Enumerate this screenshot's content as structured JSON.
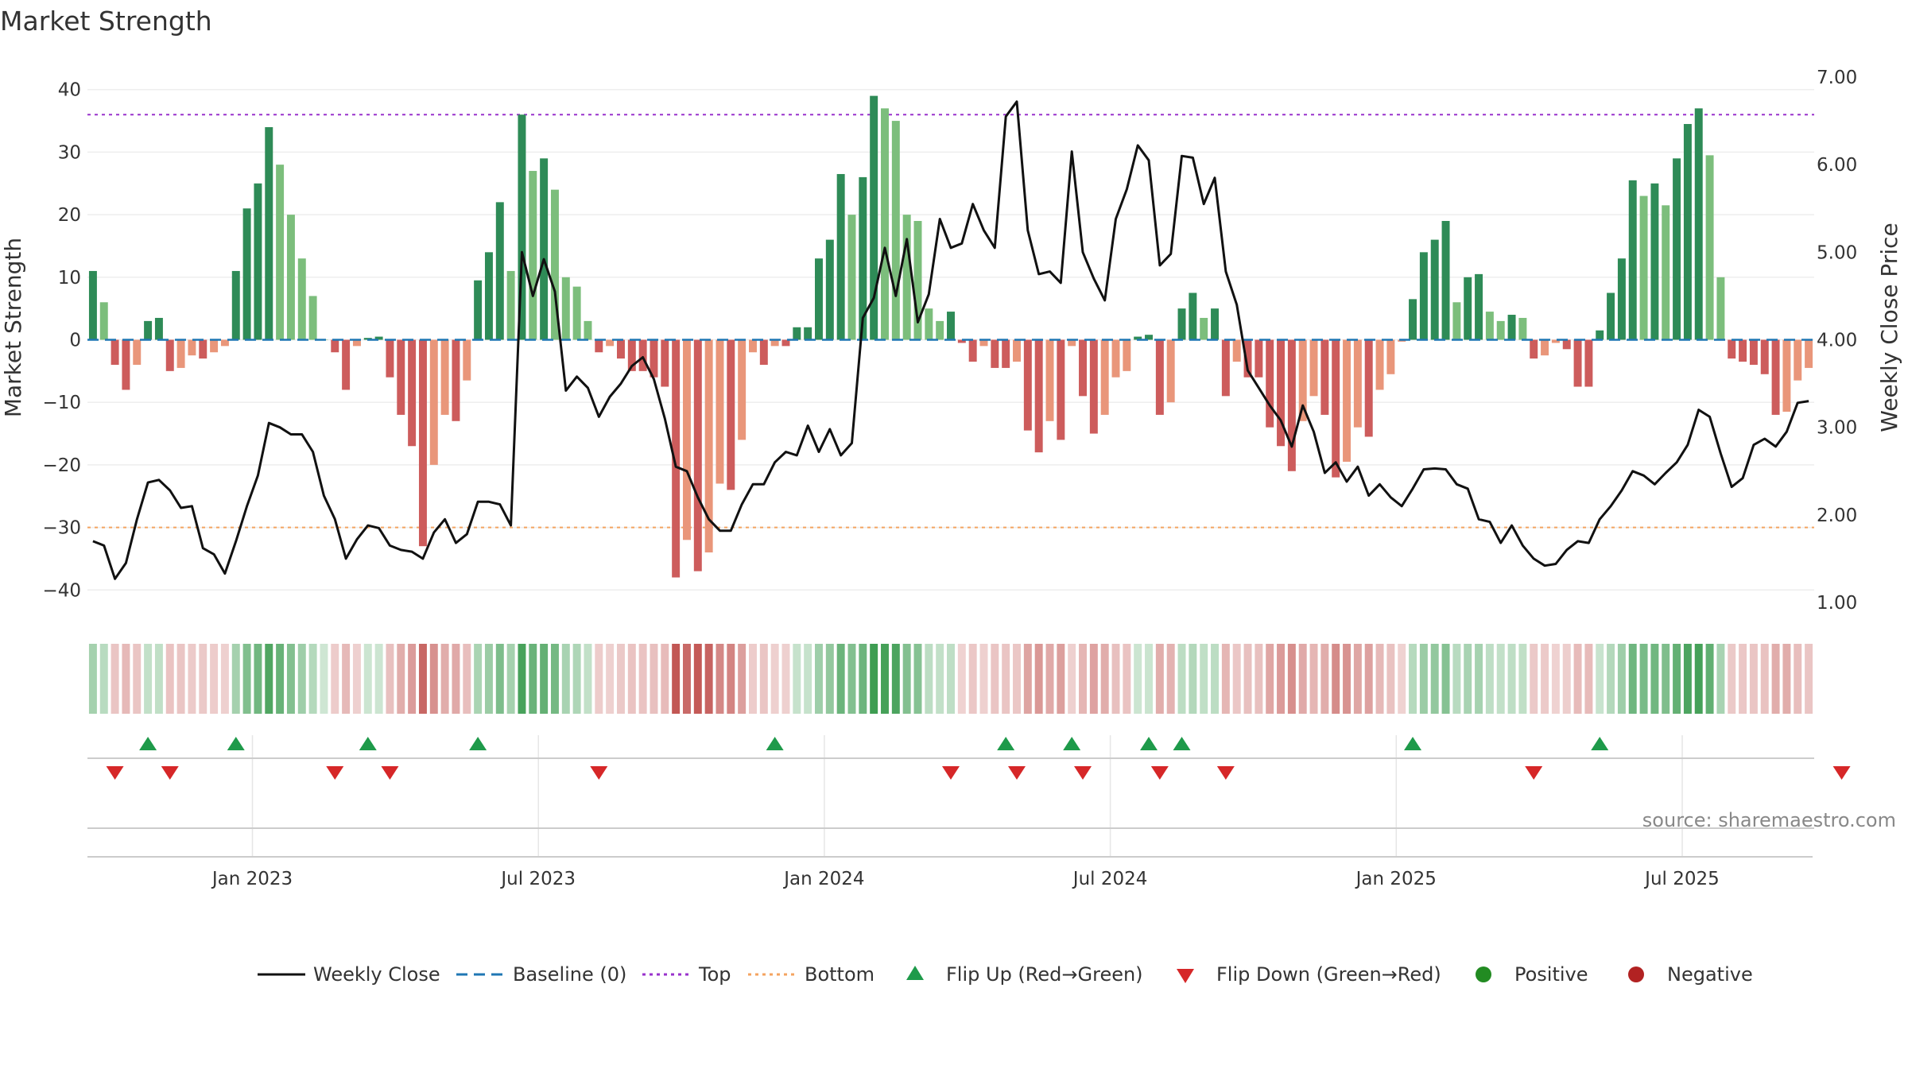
{
  "chart_data": {
    "type": "bar",
    "title": "Market Strength",
    "ylabel_left": "Market Strength",
    "ylabel_right": "Weekly Close Price",
    "source": "source: sharemaestro.com",
    "ylim_left": [
      -42,
      42
    ],
    "ylim_right": [
      1.0,
      7.0
    ],
    "yticks_left": [
      "40",
      "30",
      "20",
      "10",
      "0",
      "−10",
      "−20",
      "−30",
      "−40"
    ],
    "yticks_left_values": [
      40,
      30,
      20,
      10,
      0,
      -10,
      -20,
      -30,
      -40
    ],
    "yticks_right": [
      "7.00",
      "6.00",
      "5.00",
      "4.00",
      "3.00",
      "2.00",
      "1.00"
    ],
    "yticks_right_values": [
      7,
      6,
      5,
      4,
      3,
      2,
      1
    ],
    "x_ticks": [
      "Jan 2023",
      "Jul 2023",
      "Jan 2024",
      "Jul 2024",
      "Jan 2025",
      "Jul 2025"
    ],
    "x_tick_weeks": [
      14.5,
      40.5,
      66.5,
      92.5,
      118.5,
      144.5
    ],
    "reference_lines": {
      "top": 36,
      "bottom": -30,
      "baseline": 0
    },
    "strength": [
      11,
      6,
      -4,
      -8,
      -4,
      3,
      3.5,
      -5,
      -4.5,
      -2.5,
      -3,
      -2,
      -1,
      11,
      21,
      25,
      34,
      28,
      20,
      13,
      7,
      0,
      -2,
      -8,
      -1,
      0.3,
      0.5,
      -6,
      -12,
      -17,
      -33,
      -20,
      -12,
      -13,
      -6.5,
      9.5,
      14,
      22,
      11,
      36,
      27,
      29,
      24,
      10,
      8.5,
      3,
      -2,
      -1,
      -3,
      -5,
      -5,
      -6,
      -7.5,
      -38,
      -32,
      -37,
      -34,
      -23,
      -24,
      -16,
      -2,
      -4,
      -1,
      -1,
      2,
      2,
      13,
      16,
      26.5,
      20,
      26,
      39,
      37,
      35,
      20,
      19,
      5,
      3,
      4.5,
      -0.5,
      -3.5,
      -1,
      -4.5,
      -4.5,
      -3.5,
      -14.5,
      -18,
      -13,
      -16,
      -1,
      -9,
      -15,
      -12,
      -6,
      -5,
      0.5,
      0.8,
      -12,
      -10,
      5,
      7.5,
      3.5,
      5,
      -9,
      -3.5,
      -6,
      -6,
      -14,
      -17,
      -21,
      -13,
      -9,
      -12,
      -22,
      -19.5,
      -14,
      -15.5,
      -8,
      -5.5,
      -0.3,
      6.5,
      14,
      16,
      19,
      6,
      10,
      10.5,
      4.5,
      3,
      4,
      3.5,
      -3,
      -2.5,
      -0.5,
      -1.5,
      -7.5,
      -7.5,
      1.5,
      7.5,
      13,
      25.5,
      23,
      25,
      21.5,
      29,
      34.5,
      37,
      29.5,
      10,
      -3,
      -3.5,
      -4,
      -5.5,
      -12,
      -11.5,
      -6.5,
      -4.5
    ],
    "weekly_close": [
      1.7,
      1.65,
      1.27,
      1.45,
      1.95,
      2.37,
      2.4,
      2.28,
      2.08,
      2.1,
      1.62,
      1.55,
      1.33,
      1.7,
      2.1,
      2.45,
      3.05,
      3.0,
      2.92,
      2.92,
      2.72,
      2.22,
      1.95,
      1.5,
      1.72,
      1.88,
      1.85,
      1.65,
      1.6,
      1.58,
      1.5,
      1.8,
      1.95,
      1.68,
      1.78,
      2.15,
      2.15,
      2.12,
      1.88,
      5.0,
      4.5,
      4.92,
      4.55,
      3.42,
      3.58,
      3.45,
      3.12,
      3.35,
      3.5,
      3.7,
      3.8,
      3.55,
      3.1,
      2.55,
      2.5,
      2.2,
      1.95,
      1.82,
      1.82,
      2.12,
      2.35,
      2.35,
      2.6,
      2.72,
      2.68,
      3.02,
      2.72,
      2.98,
      2.68,
      2.82,
      4.25,
      4.48,
      5.05,
      4.5,
      5.15,
      4.2,
      4.52,
      5.38,
      5.05,
      5.1,
      5.55,
      5.25,
      5.05,
      6.55,
      6.72,
      5.25,
      4.75,
      4.78,
      4.65,
      6.15,
      5.0,
      4.7,
      4.45,
      5.38,
      5.72,
      6.22,
      6.05,
      4.85,
      4.98,
      6.1,
      6.08,
      5.55,
      5.85,
      4.78,
      4.4,
      3.65,
      3.45,
      3.25,
      3.08,
      2.78,
      3.25,
      2.95,
      2.48,
      2.6,
      2.38,
      2.55,
      2.22,
      2.35,
      2.2,
      2.1,
      2.3,
      2.52,
      2.53,
      2.52,
      2.35,
      2.3,
      1.95,
      1.92,
      1.68,
      1.88,
      1.65,
      1.5,
      1.42,
      1.44,
      1.6,
      1.7,
      1.68,
      1.95,
      2.1,
      2.28,
      2.5,
      2.45,
      2.35,
      2.48,
      2.6,
      2.8,
      3.2,
      3.12,
      2.7,
      2.32,
      2.42,
      2.8,
      2.87,
      2.78,
      2.95,
      3.28,
      3.3
    ],
    "flip_up_weeks": [
      5,
      13,
      25,
      35,
      62,
      83,
      89,
      96,
      99,
      120,
      137
    ],
    "flip_down_weeks": [
      2,
      7,
      22,
      27,
      46,
      78,
      84,
      90,
      97,
      103,
      131,
      159
    ],
    "legend": [
      "Weekly Close",
      "Baseline (0)",
      "Top",
      "Bottom",
      "Flip Up (Red→Green)",
      "Flip Down (Green→Red)",
      "Positive",
      "Negative"
    ],
    "colors": {
      "strong_pos": "#2e8b57",
      "weak_pos": "#7cbe7c",
      "strong_neg": "#cd5c5c",
      "weak_neg": "#e9967a",
      "close": "#111111",
      "baseline": "#1f77b4",
      "top": "#9932cc",
      "bottom": "#f4a460",
      "flip_up": "#1e9a4a",
      "flip_down": "#d62728",
      "positive": "#228b22",
      "negative": "#b22222"
    }
  }
}
